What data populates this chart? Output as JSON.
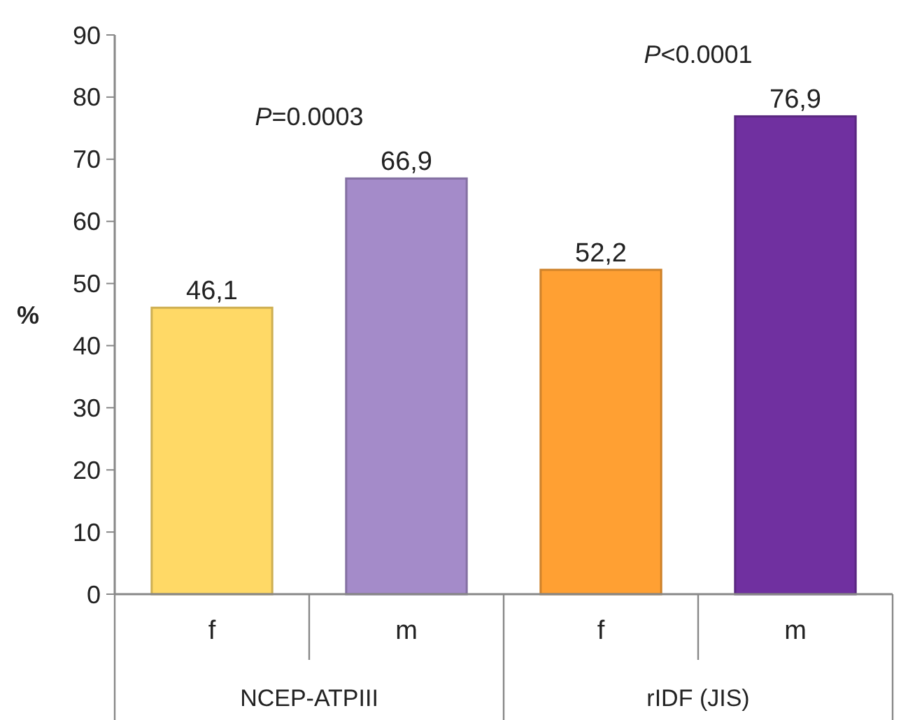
{
  "chart_data": {
    "type": "bar",
    "ylabel": "%",
    "categories": [
      "f",
      "m",
      "f",
      "m"
    ],
    "values": [
      46.1,
      66.9,
      52.2,
      76.9
    ],
    "colors": [
      "#ffd966",
      "#a48bc9",
      "#ffa033",
      "#7030a0"
    ],
    "value_labels": [
      "46,1",
      "66,9",
      "52,2",
      "76,9"
    ],
    "ylim": [
      0,
      90
    ],
    "yticks": [
      0,
      10,
      20,
      30,
      40,
      50,
      60,
      70,
      80,
      90
    ],
    "annotations": [
      "P=0.0003",
      "P<0.0001",
      "NCEP-ATPIII",
      "rIDF (JIS)"
    ],
    "grid": false
  }
}
